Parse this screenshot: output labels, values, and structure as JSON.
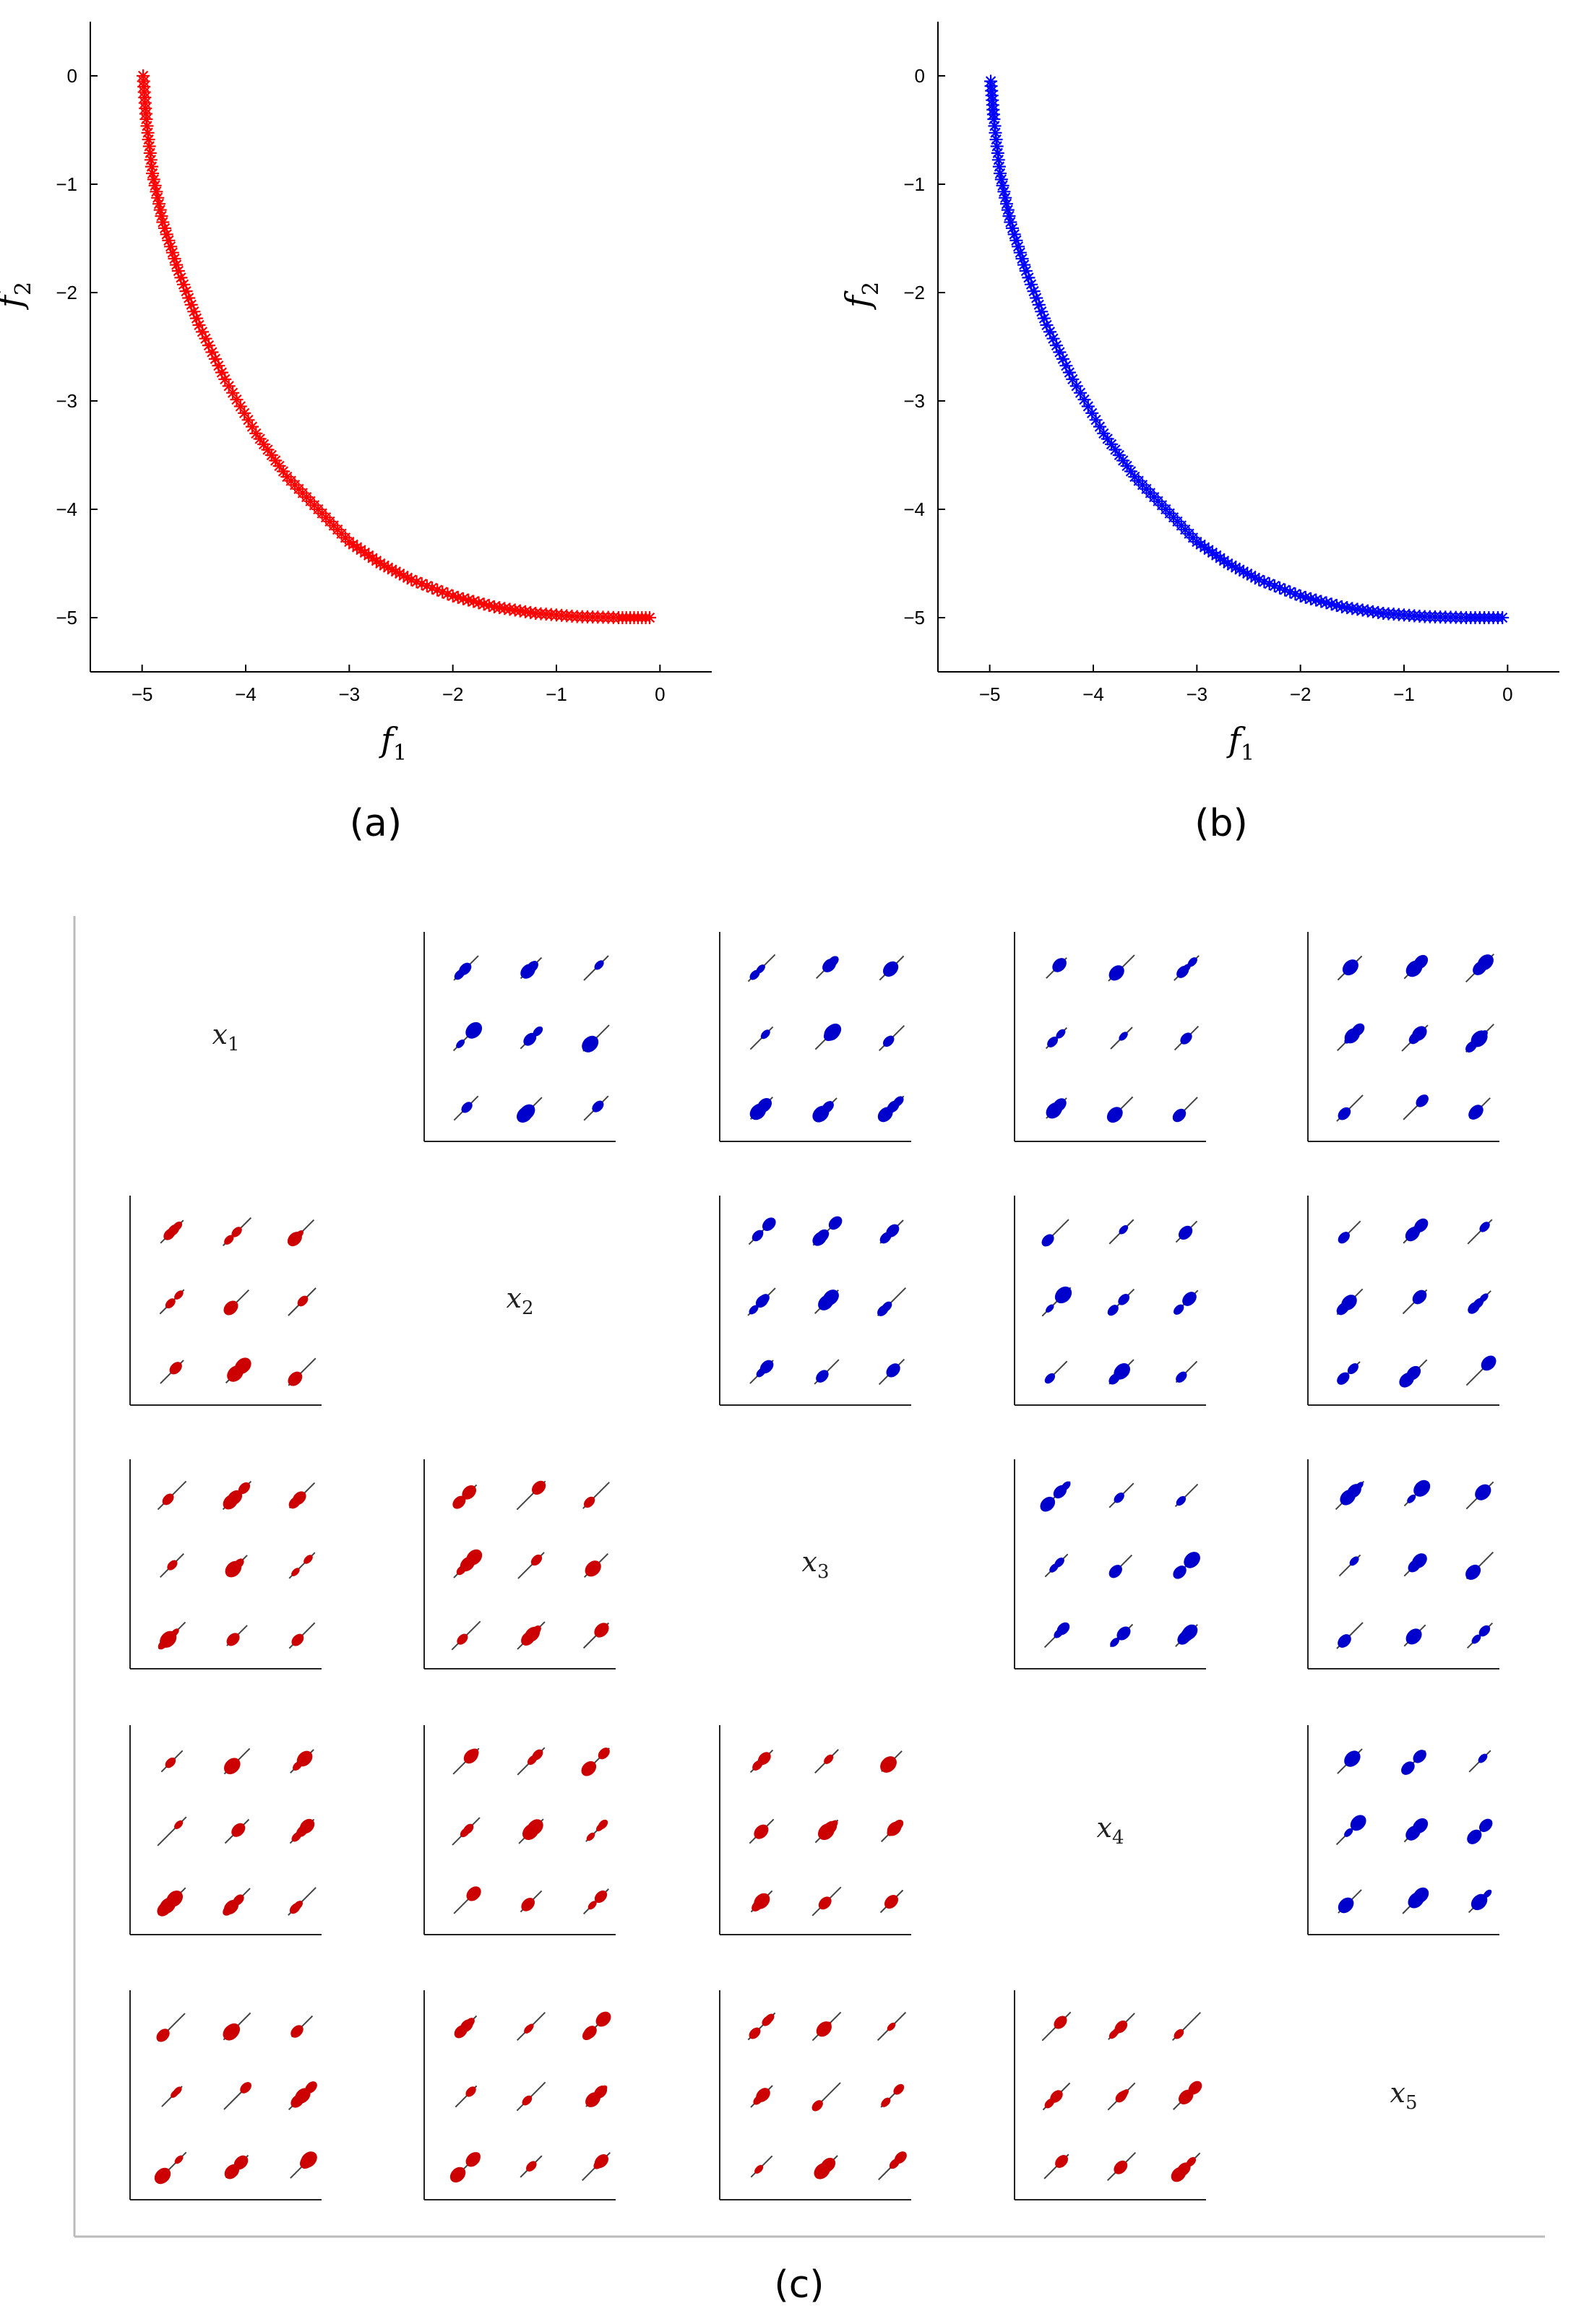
{
  "figure": {
    "captions": [
      "(a)",
      "(b)",
      "(c)"
    ]
  },
  "chart_data": [
    {
      "id": "a",
      "type": "scatter",
      "xlabel": "f",
      "xlabel_sub": "1",
      "ylabel": "f",
      "ylabel_sub": "2",
      "xlim": [
        -5.5,
        0.5
      ],
      "ylim": [
        -5.5,
        0.5
      ],
      "xticks": [
        -5,
        -4,
        -3,
        -2,
        -1,
        0
      ],
      "yticks": [
        0,
        -1,
        -2,
        -3,
        -4,
        -5
      ],
      "marker": "asterisk",
      "color": "#ff0000",
      "series": [
        {
          "x": [
            -4.99,
            -4.96,
            -4.9,
            -4.8,
            -4.65,
            -4.45,
            -4.2,
            -3.9,
            -3.6,
            -3.3,
            -3.0,
            -2.7,
            -2.4,
            -2.0,
            -1.6,
            -1.2,
            -0.8,
            -0.4,
            -0.1
          ],
          "y": [
            0.0,
            -0.4,
            -0.9,
            -1.35,
            -1.8,
            -2.3,
            -2.8,
            -3.3,
            -3.7,
            -4.0,
            -4.3,
            -4.5,
            -4.65,
            -4.8,
            -4.9,
            -4.96,
            -4.99,
            -5.0,
            -5.0
          ]
        }
      ]
    },
    {
      "id": "b",
      "type": "scatter",
      "xlabel": "f",
      "xlabel_sub": "1",
      "ylabel": "f",
      "ylabel_sub": "2",
      "xlim": [
        -5.5,
        0.5
      ],
      "ylim": [
        -5.5,
        0.5
      ],
      "xticks": [
        -5,
        -4,
        -3,
        -2,
        -1,
        0
      ],
      "yticks": [
        0,
        -1,
        -2,
        -3,
        -4,
        -5
      ],
      "marker": "asterisk",
      "color": "#0000ff",
      "series": [
        {
          "x": [
            -4.99,
            -4.96,
            -4.9,
            -4.8,
            -4.65,
            -4.45,
            -4.2,
            -3.9,
            -3.6,
            -3.3,
            -3.0,
            -2.7,
            -2.4,
            -2.0,
            -1.6,
            -1.2,
            -0.8,
            -0.4,
            -0.05
          ],
          "y": [
            -0.05,
            -0.4,
            -0.9,
            -1.35,
            -1.8,
            -2.3,
            -2.8,
            -3.3,
            -3.7,
            -4.0,
            -4.3,
            -4.5,
            -4.65,
            -4.8,
            -4.9,
            -4.96,
            -4.99,
            -5.0,
            -5.0
          ]
        }
      ]
    },
    {
      "id": "c",
      "type": "scatter-matrix",
      "variables": [
        {
          "name": "x",
          "sub": "1"
        },
        {
          "name": "x",
          "sub": "2"
        },
        {
          "name": "x",
          "sub": "3"
        },
        {
          "name": "x",
          "sub": "4"
        },
        {
          "name": "x",
          "sub": "5"
        }
      ],
      "upper_color": "#0000cc",
      "lower_color": "#cc0000",
      "clusters": "3x3 grid of small diagonal point clusters in every off-diagonal panel"
    }
  ]
}
